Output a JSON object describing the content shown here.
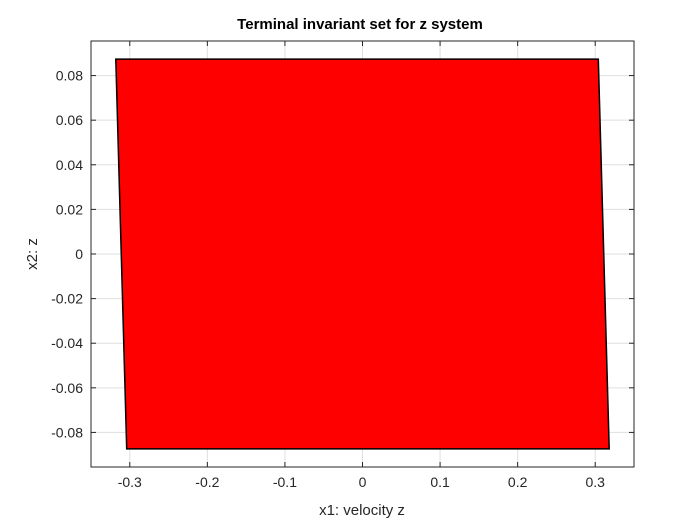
{
  "chart_data": {
    "type": "area",
    "title": "Terminal invariant set for z system",
    "xlabel": "x1: velocity z",
    "ylabel": "x2: z",
    "xlim": [
      -0.35,
      0.35
    ],
    "ylim": [
      -0.0955,
      0.0955
    ],
    "grid": true,
    "x_ticks": [
      -0.3,
      -0.2,
      -0.1,
      0,
      0.1,
      0.2,
      0.3
    ],
    "x_tick_labels": [
      "-0.3",
      "-0.2",
      "-0.1",
      "0",
      "0.1",
      "0.2",
      "0.3"
    ],
    "y_ticks": [
      -0.08,
      -0.06,
      -0.04,
      -0.02,
      0,
      0.02,
      0.04,
      0.06,
      0.08
    ],
    "y_tick_labels": [
      "-0.08",
      "-0.06",
      "-0.04",
      "-0.02",
      "0",
      "0.02",
      "0.04",
      "0.06",
      "0.08"
    ],
    "polygon": {
      "vertices": [
        {
          "x": -0.318,
          "y": 0.0874
        },
        {
          "x": 0.304,
          "y": 0.0874
        },
        {
          "x": 0.318,
          "y": -0.0874
        },
        {
          "x": -0.304,
          "y": -0.0874
        }
      ],
      "fill_color": "#ff0000",
      "edge_color": "#000000"
    }
  }
}
